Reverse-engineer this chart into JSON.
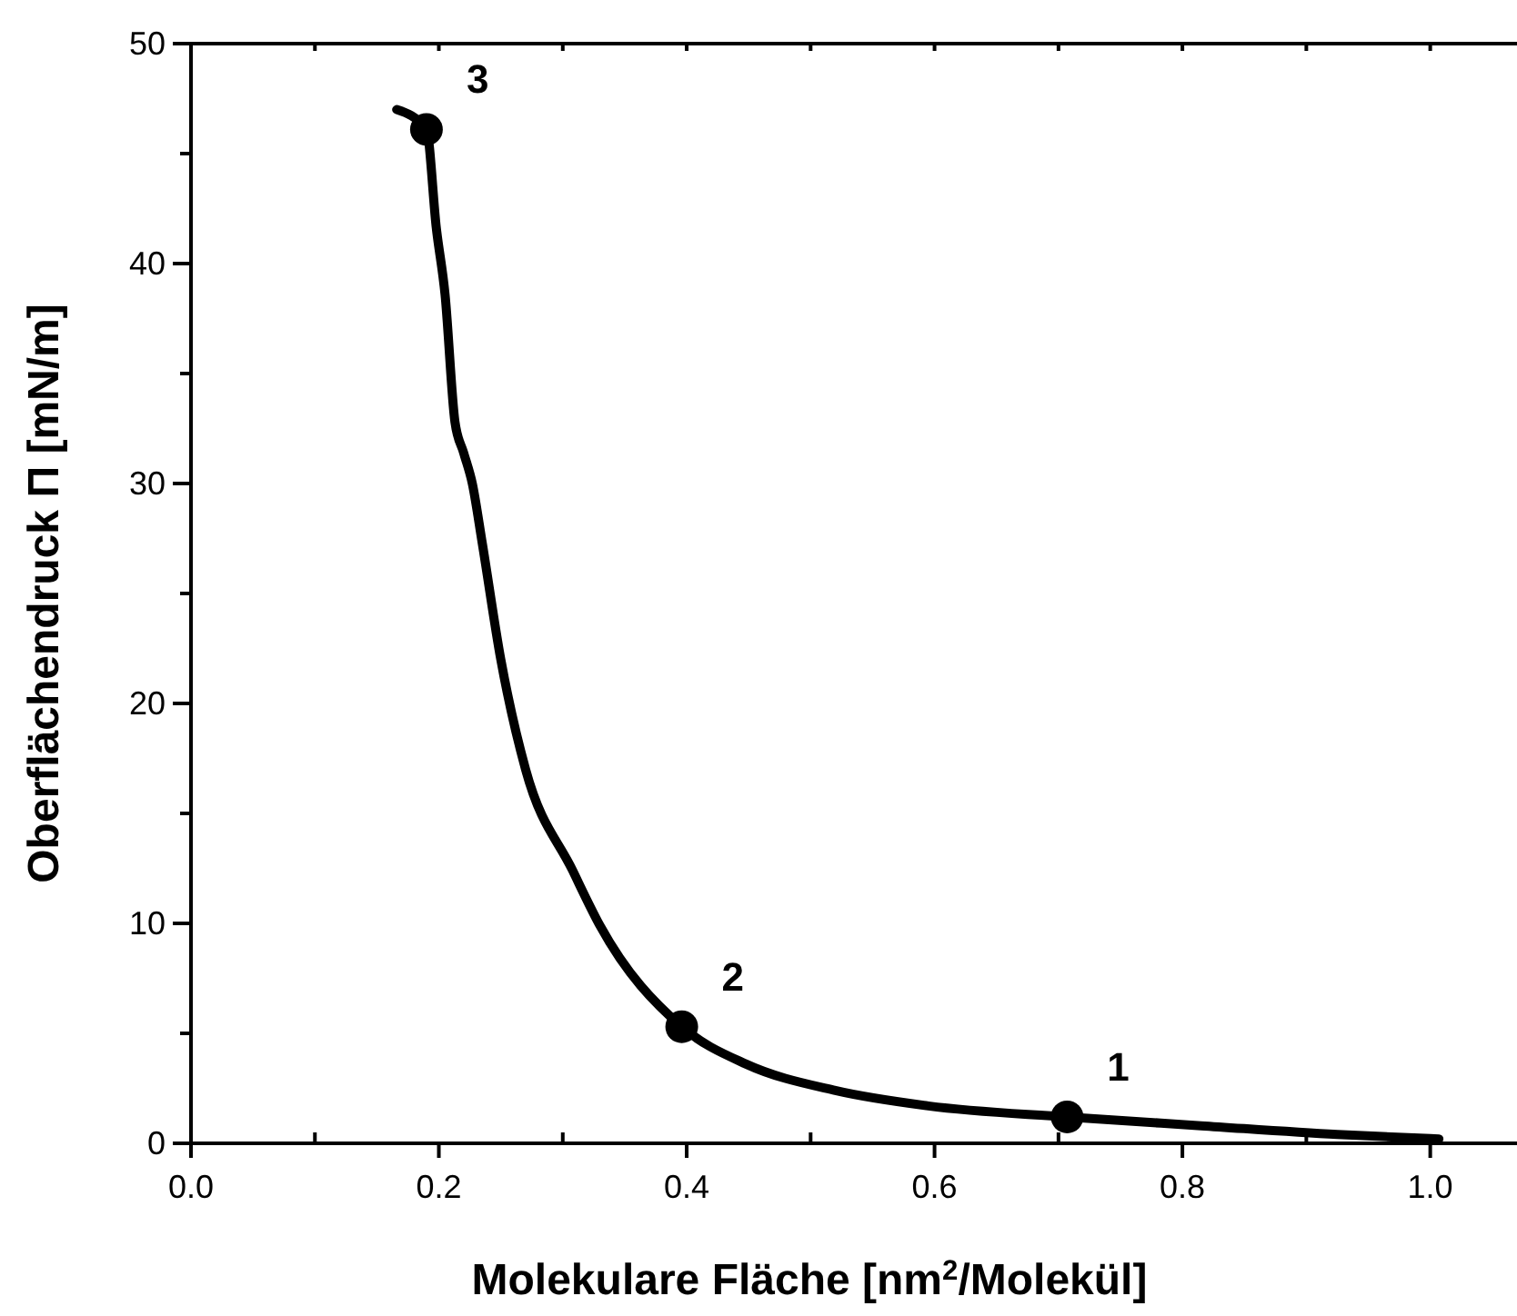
{
  "chart_data": {
    "type": "line",
    "xlabel": "Molekulare Fläche [nm$^{2}$/Molekül]",
    "ylabel": "Oberflächendruck Π [mN/m]",
    "xlim": [
      0,
      1.07
    ],
    "ylim": [
      0,
      50
    ],
    "xticks": [
      {
        "value": 0,
        "label": "0.0"
      },
      {
        "value": 0.1,
        "label": null
      },
      {
        "value": 0.2,
        "label": "0.2"
      },
      {
        "value": 0.3,
        "label": null
      },
      {
        "value": 0.4,
        "label": "0.4"
      },
      {
        "value": 0.5,
        "label": null
      },
      {
        "value": 0.6,
        "label": "0.6"
      },
      {
        "value": 0.7,
        "label": null
      },
      {
        "value": 0.8,
        "label": "0.8"
      },
      {
        "value": 0.9,
        "label": null
      },
      {
        "value": 1.0,
        "label": "1.0"
      }
    ],
    "yticks": [
      0,
      {
        "value": 5,
        "label": null
      },
      10,
      {
        "value": 15,
        "label": null
      },
      20,
      {
        "value": 25,
        "label": null
      },
      30,
      {
        "value": 35,
        "label": null
      },
      40,
      {
        "value": 45,
        "label": null
      },
      50
    ],
    "grid": false,
    "series": [
      {
        "color": "#000000",
        "marker": "none",
        "x": [
          0.166,
          0.19,
          0.198,
          0.205,
          0.213,
          0.22,
          0.227,
          0.235,
          0.25,
          0.27,
          0.308,
          0.33,
          0.396,
          0.448,
          0.52,
          0.595,
          0.707,
          0.815,
          0.925,
          1.007
        ],
        "values": [
          47.0,
          46.1,
          41.6,
          38.6,
          32.8,
          31.4,
          30.0,
          27.3,
          22,
          17,
          12.4,
          9.9,
          5.3,
          3.6,
          2.4,
          1.7,
          1.2,
          0.8,
          0.4,
          0.2
        ]
      },
      {
        "type": "scatter",
        "color": "#000000",
        "marker": "circle",
        "x": [
          0.707,
          0.396,
          0.19
        ],
        "values": [
          1.2,
          5.3,
          46.1
        ]
      }
    ],
    "annotations": [
      {
        "text": "1",
        "x": 0.707,
        "y": 1.2
      },
      {
        "text": "2",
        "x": 0.396,
        "y": 5.3
      },
      {
        "text": "3",
        "x": 0.19,
        "y": 46.1
      }
    ]
  }
}
